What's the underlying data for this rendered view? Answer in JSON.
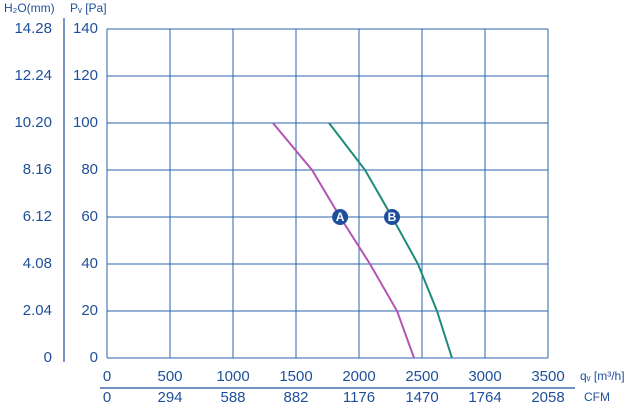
{
  "chart_data": {
    "type": "line",
    "y_label": "Pᵥ [Pa]",
    "y2_label": "H₂O(mm)",
    "x_label": "qᵥ [m³/h]",
    "x2_label": "CFM",
    "xlim": [
      0,
      3500
    ],
    "xticks": [
      0,
      500,
      1000,
      1500,
      2000,
      2500,
      3000,
      3500
    ],
    "x2lim": [
      0,
      2058
    ],
    "x2ticks": [
      0,
      294,
      588,
      882,
      1176,
      1470,
      1764,
      2058
    ],
    "ylim": [
      0,
      140
    ],
    "yticks": [
      0,
      20,
      40,
      60,
      80,
      100,
      120,
      140
    ],
    "y2lim": [
      0,
      14.28
    ],
    "y2ticks": [
      0,
      2.04,
      4.08,
      6.12,
      8.16,
      {
        "value": 10.2,
        "label": "10.20"
      },
      12.24,
      14.28
    ],
    "grid": true,
    "series": [
      {
        "name": "A",
        "color": "#b455b4",
        "x": [
          1317,
          1627,
          1850,
          2087,
          2302,
          2437
        ],
        "values": [
          100,
          80,
          60,
          40,
          20,
          0
        ]
      },
      {
        "name": "B",
        "color": "#1c8c78",
        "x": [
          1762,
          2048,
          2262,
          2468,
          2619,
          2738
        ],
        "values": [
          100,
          80,
          60,
          40,
          20,
          0
        ]
      }
    ]
  }
}
